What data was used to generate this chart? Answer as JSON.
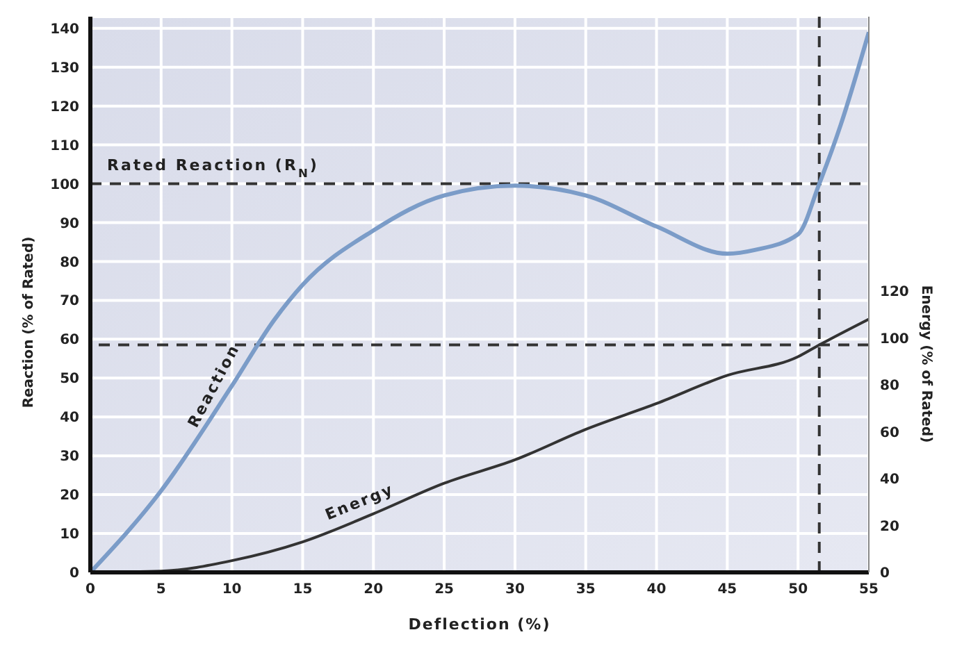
{
  "chart_data": {
    "type": "line",
    "xlabel": "Deflection (%)",
    "ylabel": "Reaction (% of Rated)",
    "y2label": "Energy (% of Rated)",
    "xlim": [
      0,
      55
    ],
    "xticks": [
      0,
      5,
      10,
      15,
      20,
      25,
      30,
      35,
      40,
      45,
      50,
      55
    ],
    "ylim": [
      0,
      143
    ],
    "yticks": [
      0,
      10,
      20,
      30,
      40,
      50,
      60,
      70,
      80,
      90,
      100,
      110,
      120,
      130,
      140
    ],
    "y2lim": [
      0,
      237
    ],
    "y2ticks": [
      0,
      20,
      40,
      60,
      80,
      100,
      120
    ],
    "grid": true,
    "legend": false,
    "marker": "none",
    "line_style": "solid",
    "series": [
      {
        "name": "Reaction",
        "color": "#7b9cc8",
        "x": [
          0,
          5,
          10,
          13,
          15,
          20,
          25,
          30,
          35,
          40,
          45,
          47,
          50,
          51.5,
          53,
          55
        ],
        "values": [
          0,
          21,
          48,
          65,
          74,
          88,
          97,
          99.5,
          97,
          89,
          82,
          83,
          87,
          100,
          115,
          139
        ]
      },
      {
        "name": "Energy",
        "color": "#333333",
        "axis": "y2",
        "x": [
          0,
          5,
          10,
          15,
          20,
          25,
          30,
          35,
          40,
          45,
          50,
          51.5,
          55
        ],
        "values": [
          0,
          0.5,
          5,
          13,
          25,
          38,
          48,
          61,
          72,
          84,
          92,
          97,
          108
        ]
      }
    ],
    "ref_lines": [
      {
        "axis": "y",
        "value": 100,
        "label": "Rated Reaction (R$_{N}$)",
        "color": "#333333",
        "line_style": "dashed"
      },
      {
        "axis": "x",
        "value": 51.5,
        "color": "#333333",
        "line_style": "dashed"
      },
      {
        "axis": "y2",
        "value": 97,
        "color": "#333333",
        "line_style": "dashed"
      }
    ]
  }
}
